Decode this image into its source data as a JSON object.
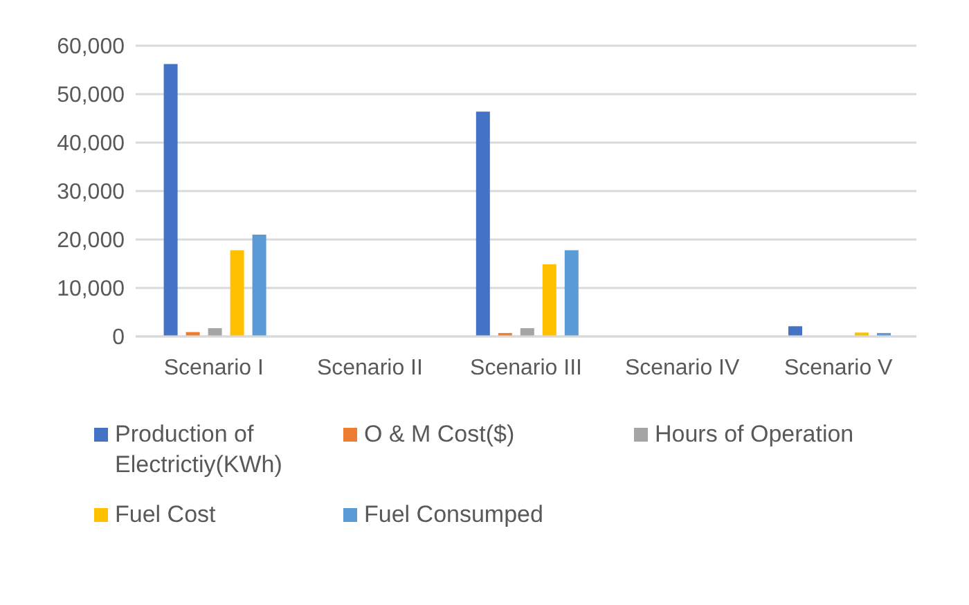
{
  "chart_data": {
    "type": "bar",
    "categories": [
      "Scenario I",
      "Scenario II",
      "Scenario III",
      "Scenario IV",
      "Scenario V"
    ],
    "series": [
      {
        "name": "Production of Electrictiy(KWh)",
        "color": "#4472c4",
        "values": [
          56200,
          0,
          46400,
          0,
          2100
        ]
      },
      {
        "name": "O & M Cost($)",
        "color": "#ed7d31",
        "values": [
          900,
          0,
          700,
          0,
          0
        ]
      },
      {
        "name": "Hours of Operation",
        "color": "#a5a5a5",
        "values": [
          1700,
          0,
          1700,
          0,
          0
        ]
      },
      {
        "name": "Fuel Cost",
        "color": "#ffc000",
        "values": [
          17800,
          0,
          14900,
          0,
          800
        ]
      },
      {
        "name": "Fuel Consumped",
        "color": "#5b9bd5",
        "values": [
          21000,
          0,
          17800,
          0,
          700
        ]
      }
    ],
    "ylim": [
      0,
      60000
    ],
    "yticks": [
      {
        "value": 0,
        "label": "0"
      },
      {
        "value": 10000,
        "label": "10,000"
      },
      {
        "value": 20000,
        "label": "20,000"
      },
      {
        "value": 30000,
        "label": "30,000"
      },
      {
        "value": 40000,
        "label": "40,000"
      },
      {
        "value": 50000,
        "label": "50,000"
      },
      {
        "value": 60000,
        "label": "60,000"
      }
    ],
    "grid": "y",
    "legend": "bottom"
  }
}
